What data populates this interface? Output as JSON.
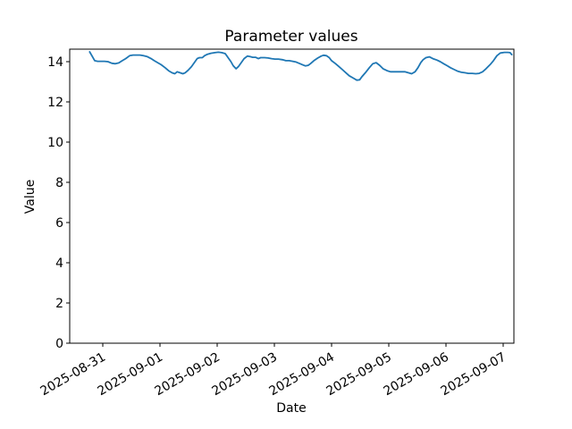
{
  "figure": {
    "background": "#ffffff",
    "spine_color": "#000000",
    "text_color": "#000000"
  },
  "chart_data": {
    "type": "line",
    "title": "Parameter values",
    "xlabel": "Date",
    "ylabel": "Value",
    "grid": false,
    "legend": false,
    "x_unit": "days since 2025-08-31 00:00",
    "x_tick_labels": [
      "2025-08-31",
      "2025-09-01",
      "2025-09-02",
      "2025-09-03",
      "2025-09-04",
      "2025-09-05",
      "2025-09-06",
      "2025-09-07"
    ],
    "x_tick_rotation_deg": 30,
    "y_ticks": [
      0,
      2,
      4,
      6,
      8,
      10,
      12,
      14
    ],
    "ylim": [
      0,
      14.62
    ],
    "xlim": [
      -0.58,
      7.19
    ],
    "series": [
      {
        "name": "Parameter values",
        "color": "#1f77b4",
        "x": [
          -0.23,
          -0.19,
          -0.14,
          -0.09,
          -0.03,
          0.03,
          0.09,
          0.16,
          0.22,
          0.28,
          0.34,
          0.4,
          0.47,
          0.53,
          0.59,
          0.65,
          0.71,
          0.78,
          0.84,
          0.9,
          0.96,
          1.02,
          1.09,
          1.15,
          1.21,
          1.26,
          1.3,
          1.35,
          1.4,
          1.44,
          1.49,
          1.55,
          1.6,
          1.65,
          1.69,
          1.74,
          1.78,
          1.83,
          1.89,
          1.96,
          2.02,
          2.08,
          2.14,
          2.19,
          2.24,
          2.28,
          2.33,
          2.37,
          2.42,
          2.47,
          2.53,
          2.58,
          2.62,
          2.67,
          2.72,
          2.76,
          2.83,
          2.89,
          2.95,
          3.01,
          3.07,
          3.14,
          3.2,
          3.26,
          3.32,
          3.38,
          3.45,
          3.49,
          3.54,
          3.59,
          3.63,
          3.69,
          3.76,
          3.82,
          3.86,
          3.91,
          3.96,
          4.0,
          4.07,
          4.13,
          4.19,
          4.25,
          4.31,
          4.38,
          4.44,
          4.49,
          4.53,
          4.59,
          4.66,
          4.72,
          4.78,
          4.84,
          4.9,
          4.97,
          5.03,
          5.09,
          5.15,
          5.21,
          5.28,
          5.34,
          5.4,
          5.46,
          5.51,
          5.56,
          5.6,
          5.65,
          5.71,
          5.77,
          5.84,
          5.9,
          5.96,
          6.02,
          6.08,
          6.15,
          6.21,
          6.27,
          6.33,
          6.39,
          6.46,
          6.52,
          6.58,
          6.64,
          6.7,
          6.77,
          6.83,
          6.89,
          6.95,
          7.02,
          7.08,
          7.12,
          7.15
        ],
        "y": [
          14.49,
          14.3,
          14.05,
          14.02,
          14.02,
          14.02,
          14.0,
          13.92,
          13.9,
          13.94,
          14.05,
          14.15,
          14.3,
          14.33,
          14.33,
          14.33,
          14.3,
          14.25,
          14.16,
          14.05,
          13.95,
          13.85,
          13.7,
          13.55,
          13.45,
          13.4,
          13.5,
          13.45,
          13.4,
          13.45,
          13.57,
          13.75,
          13.95,
          14.15,
          14.2,
          14.2,
          14.3,
          14.37,
          14.42,
          14.45,
          14.47,
          14.45,
          14.4,
          14.2,
          14.0,
          13.8,
          13.65,
          13.75,
          13.95,
          14.15,
          14.28,
          14.25,
          14.22,
          14.22,
          14.15,
          14.2,
          14.2,
          14.18,
          14.15,
          14.13,
          14.13,
          14.1,
          14.05,
          14.05,
          14.02,
          13.98,
          13.9,
          13.85,
          13.79,
          13.82,
          13.9,
          14.05,
          14.18,
          14.28,
          14.32,
          14.3,
          14.2,
          14.05,
          13.9,
          13.75,
          13.6,
          13.45,
          13.3,
          13.18,
          13.08,
          13.1,
          13.25,
          13.45,
          13.7,
          13.9,
          13.95,
          13.82,
          13.65,
          13.55,
          13.5,
          13.5,
          13.5,
          13.5,
          13.5,
          13.45,
          13.4,
          13.5,
          13.7,
          13.95,
          14.1,
          14.2,
          14.24,
          14.15,
          14.08,
          14.0,
          13.9,
          13.8,
          13.7,
          13.6,
          13.52,
          13.47,
          13.45,
          13.42,
          13.42,
          13.4,
          13.42,
          13.5,
          13.65,
          13.85,
          14.05,
          14.3,
          14.43,
          14.46,
          14.46,
          14.45,
          14.35
        ]
      }
    ]
  }
}
